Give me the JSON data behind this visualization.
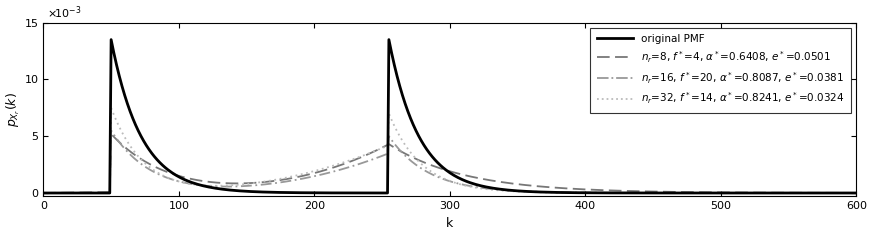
{
  "xlabel": "k",
  "ylabel": "p_{X_r}(k)",
  "xlim": [
    0,
    600
  ],
  "ylim": [
    -0.3,
    15
  ],
  "yticks": [
    0,
    5,
    10,
    15
  ],
  "ytick_labels": [
    "0",
    "5",
    "10",
    "15"
  ],
  "xticks": [
    0,
    100,
    200,
    300,
    400,
    500,
    600
  ],
  "scale_label": "x 10",
  "peak1_k": 50,
  "peak2_k": 255,
  "orig_peak_val": 13.5,
  "orig_decay": 0.045,
  "background_color": "#ffffff"
}
